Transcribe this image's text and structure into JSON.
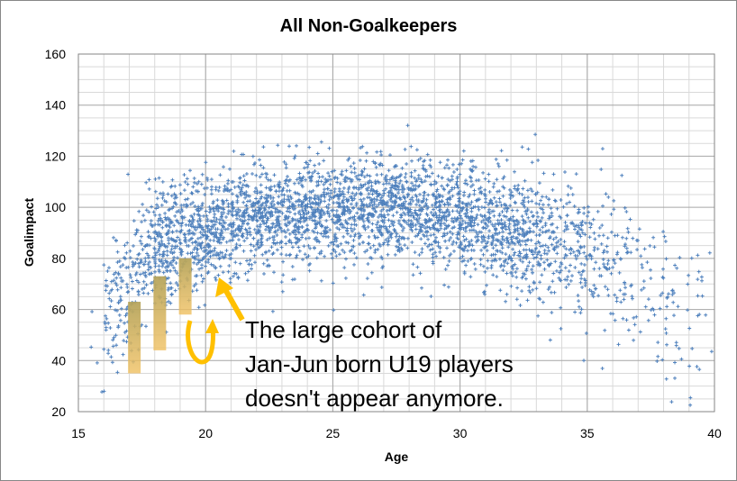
{
  "chart_data": {
    "type": "scatter",
    "title": "All Non-Goalkeepers",
    "xlabel": "Age",
    "ylabel": "Goalimpact",
    "xlim": [
      15,
      40
    ],
    "ylim": [
      20,
      160
    ],
    "x_ticks": [
      "15",
      "20",
      "25",
      "30",
      "35",
      "40"
    ],
    "y_ticks": [
      "20",
      "40",
      "60",
      "80",
      "100",
      "120",
      "140",
      "160"
    ],
    "grid": true,
    "legend": "none",
    "marker_color": "#4f81bd",
    "marker": "plus",
    "trend": {
      "description_points": [
        {
          "x": 16,
          "y": 58
        },
        {
          "x": 17,
          "y": 72
        },
        {
          "x": 18,
          "y": 84
        },
        {
          "x": 20,
          "y": 92
        },
        {
          "x": 22,
          "y": 96
        },
        {
          "x": 25,
          "y": 100
        },
        {
          "x": 28,
          "y": 99
        },
        {
          "x": 30,
          "y": 96
        },
        {
          "x": 32,
          "y": 91
        },
        {
          "x": 34,
          "y": 84
        },
        {
          "x": 36,
          "y": 74
        },
        {
          "x": 38,
          "y": 62
        },
        {
          "x": 40,
          "y": 52
        }
      ],
      "spread_points": [
        {
          "x": 16,
          "s": 14
        },
        {
          "x": 20,
          "s": 10
        },
        {
          "x": 28,
          "s": 10
        },
        {
          "x": 34,
          "s": 13
        },
        {
          "x": 40,
          "s": 20
        }
      ]
    },
    "highlight_bars": [
      {
        "x": 17.2,
        "y_low": 35,
        "y_high": 63
      },
      {
        "x": 18.2,
        "y_low": 44,
        "y_high": 73
      },
      {
        "x": 19.2,
        "y_low": 58,
        "y_high": 80
      }
    ],
    "highlight_color": "#c8a95a",
    "arrow_color": "#ffc000",
    "annotation": {
      "lines": [
        "The large cohort of",
        "Jan-Jun born U19 players",
        "doesn't appear anymore."
      ]
    }
  }
}
